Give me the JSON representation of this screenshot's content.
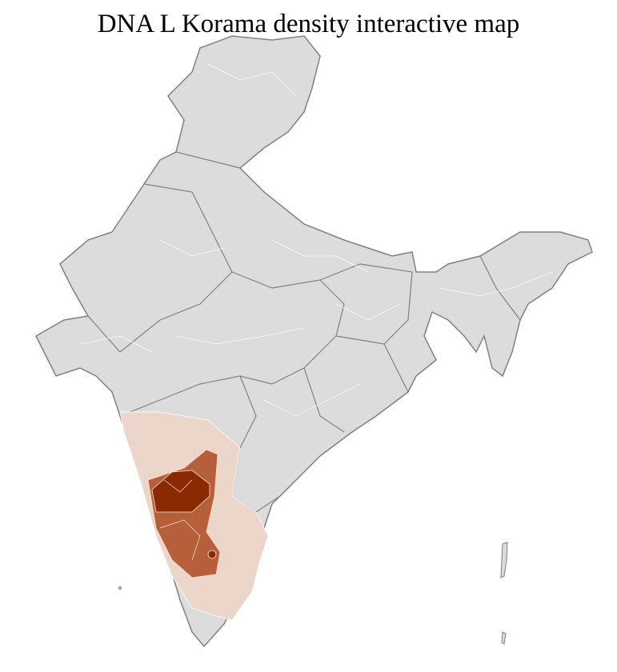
{
  "title": "DNA L Korama density interactive map",
  "map": {
    "type": "choropleth",
    "region": "India districts",
    "colors": {
      "no_data": "#dcdcdc",
      "low": "#ecd6c9",
      "medium": "#b5603a",
      "high": "#8a2a02",
      "state_border": "#808080",
      "district_border": "#ffffff"
    },
    "highlighted_states": [
      {
        "state": "Karnataka",
        "level": "medium-high"
      },
      {
        "state": "Maharashtra (south)",
        "level": "low"
      },
      {
        "state": "Goa",
        "level": "low"
      },
      {
        "state": "Andhra Pradesh (west)",
        "level": "low"
      },
      {
        "state": "Tamil Nadu",
        "level": "low"
      }
    ]
  }
}
